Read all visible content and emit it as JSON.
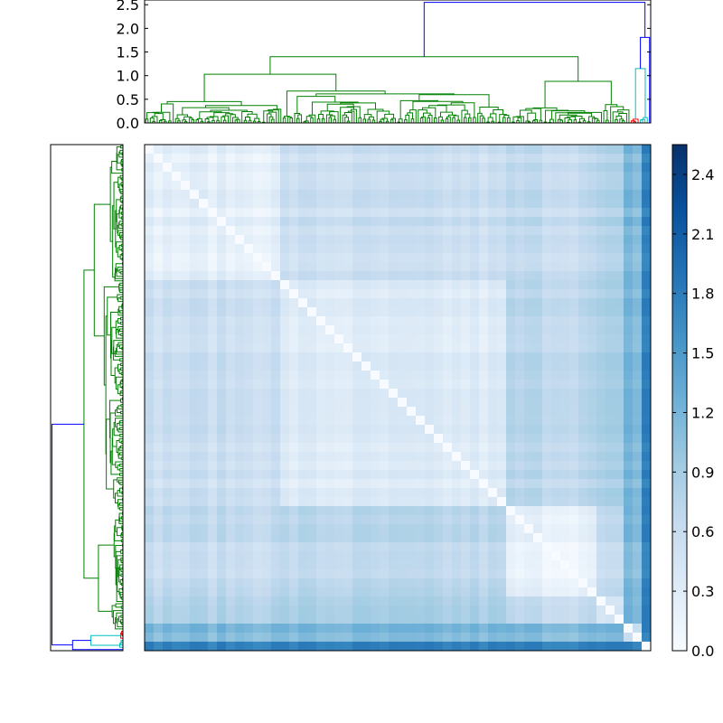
{
  "chart_data": [
    {
      "type": "dendrogram",
      "orientation": "top",
      "ylim": [
        0,
        2.6
      ],
      "yticks": [
        0.0,
        0.5,
        1.0,
        1.5,
        2.0,
        2.5
      ],
      "ytick_labels": [
        "0.0",
        "0.5",
        "1.0",
        "1.5",
        "2.0",
        "2.5"
      ],
      "root_height": 2.55,
      "link_colors": {
        "main": "#008000",
        "above_threshold": "#0000ff",
        "small_cluster_a": "#ff0000",
        "small_cluster_b": "#00bfbf"
      },
      "major_merges": [
        {
          "height": 2.55,
          "color": "#0000ff"
        },
        {
          "height": 1.81,
          "color": "#0000ff"
        },
        {
          "height": 1.4,
          "color": "#008000"
        },
        {
          "height": 1.27,
          "color": "#008000"
        },
        {
          "height": 1.15,
          "color": "#00bfbf"
        },
        {
          "height": 1.03,
          "color": "#008000"
        },
        {
          "height": 0.88,
          "color": "#008000"
        },
        {
          "height": 0.72,
          "color": "#008000"
        },
        {
          "height": 0.58,
          "color": "#008000"
        },
        {
          "height": 0.55,
          "color": "#008000"
        }
      ]
    },
    {
      "type": "dendrogram",
      "orientation": "left",
      "root_height": 2.55,
      "link_colors": {
        "main": "#008000",
        "above_threshold": "#0000ff",
        "small_cluster_a": "#ff0000",
        "small_cluster_b": "#00bfbf"
      }
    },
    {
      "type": "heatmap",
      "description_value_range": [
        0.0,
        2.55
      ],
      "colormap": "Blues",
      "colorbar": {
        "range": [
          0.0,
          2.55
        ],
        "ticks": [
          0.0,
          0.3,
          0.6,
          0.9,
          1.2,
          1.5,
          1.8,
          2.1,
          2.4
        ],
        "tick_labels": [
          "0.0",
          "0.3",
          "0.6",
          "0.9",
          "1.2",
          "1.5",
          "1.8",
          "2.1",
          "2.4"
        ]
      }
    }
  ]
}
